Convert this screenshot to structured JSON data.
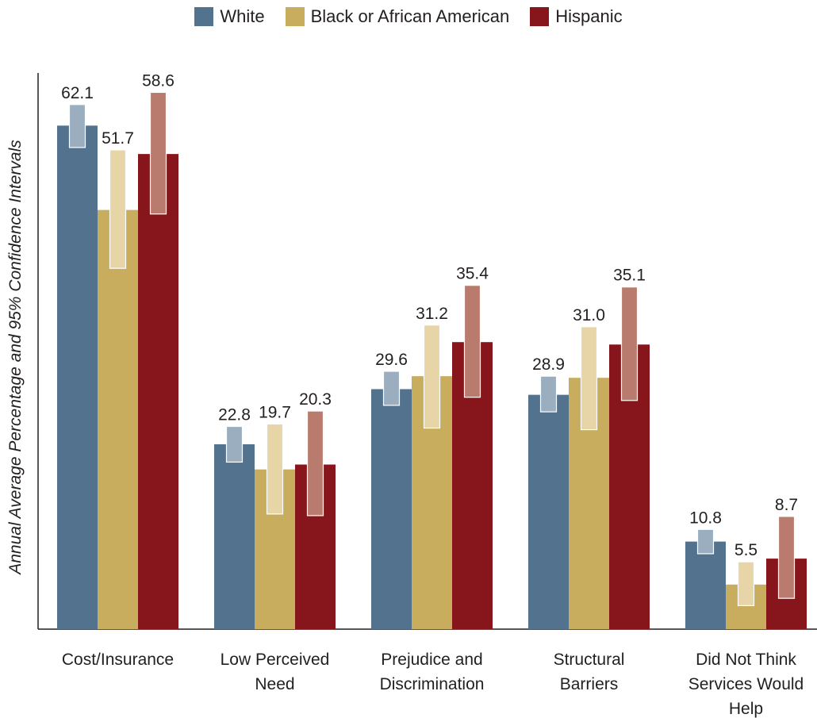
{
  "chart_data": {
    "type": "bar",
    "ylabel": "Annual Average Percentage and 95% Confidence Intervals",
    "ylim": [
      0,
      70
    ],
    "legend_position": "top-center",
    "grid": false,
    "categories": [
      [
        "Cost/Insurance"
      ],
      [
        "Low Perceived",
        "Need"
      ],
      [
        "Prejudice and",
        "Discrimination"
      ],
      [
        "Structural",
        "Barriers"
      ],
      [
        "Did Not Think",
        "Services Would",
        "Help"
      ]
    ],
    "series": [
      {
        "name": "White",
        "color": "#52728d",
        "ci_color": "#9aaec0",
        "values": [
          62.1,
          22.8,
          29.6,
          28.9,
          10.8
        ],
        "ci": [
          [
            59.4,
            64.7
          ],
          [
            20.6,
            25.0
          ],
          [
            27.6,
            31.8
          ],
          [
            26.8,
            31.2
          ],
          [
            9.3,
            12.3
          ]
        ]
      },
      {
        "name": "Black or African American",
        "color": "#c8ad5e",
        "ci_color": "#e7d5a7",
        "values": [
          51.7,
          19.7,
          31.2,
          31.0,
          5.5
        ],
        "ci": [
          [
            44.5,
            59.1
          ],
          [
            14.2,
            25.3
          ],
          [
            24.8,
            37.5
          ],
          [
            24.6,
            37.3
          ],
          [
            2.9,
            8.3
          ]
        ]
      },
      {
        "name": "Hispanic",
        "color": "#86161c",
        "ci_color": "#b87b6d",
        "values": [
          58.6,
          20.3,
          35.4,
          35.1,
          8.7
        ],
        "ci": [
          [
            51.2,
            66.2
          ],
          [
            14.0,
            26.9
          ],
          [
            28.6,
            42.4
          ],
          [
            28.2,
            42.2
          ],
          [
            3.8,
            13.9
          ]
        ]
      }
    ]
  }
}
